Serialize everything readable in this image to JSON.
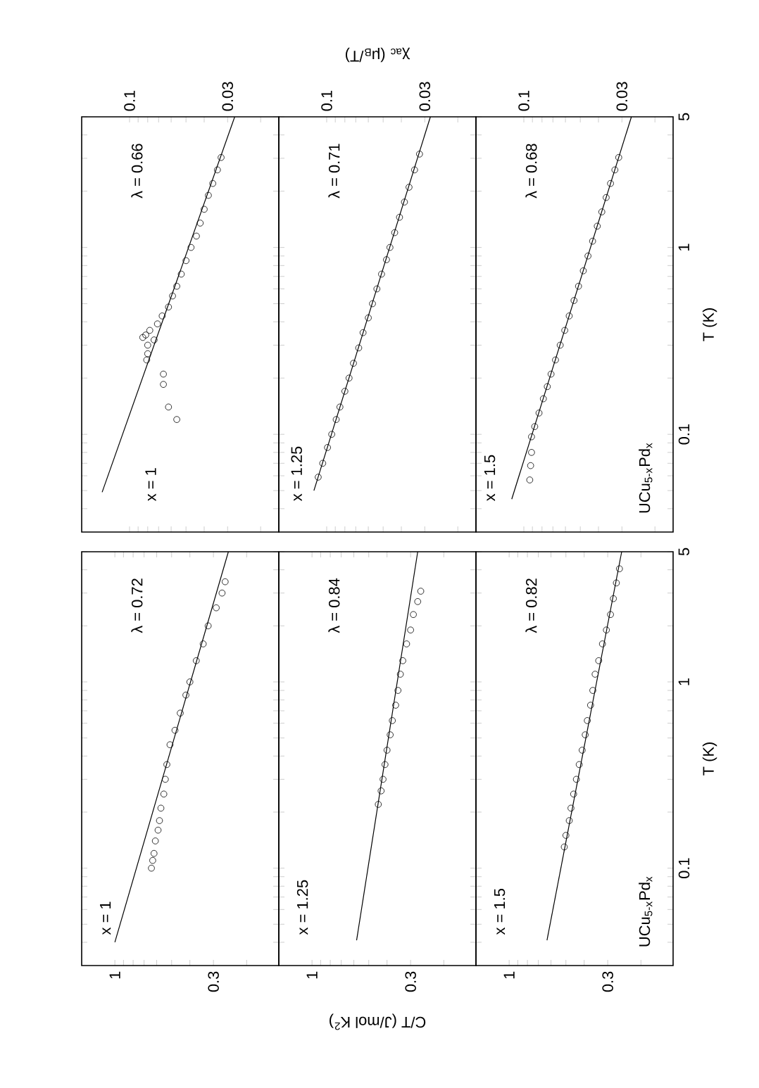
{
  "chart_data": [
    {
      "type": "scatter",
      "xlim": [
        0.18,
        0.016
      ],
      "ylim": [
        0.03,
        5
      ],
      "log": "xy",
      "tick_labels": "x",
      "xticks": [
        {
          "value": 0.02,
          "label": null
        },
        0.03,
        {
          "value": 0.04,
          "label": null
        },
        {
          "value": 0.05,
          "label": null
        },
        {
          "value": 0.06,
          "label": null
        },
        {
          "value": 0.07,
          "label": null
        },
        {
          "value": 0.08,
          "label": null
        },
        {
          "value": 0.09,
          "label": null
        },
        0.1
      ],
      "yticks": [
        {
          "value": 0.04,
          "label": null
        },
        {
          "value": 0.05,
          "label": null
        },
        {
          "value": 0.06,
          "label": null
        },
        {
          "value": 0.07,
          "label": null
        },
        {
          "value": 0.08,
          "label": null
        },
        {
          "value": 0.09,
          "label": null
        },
        0.1,
        {
          "value": 0.2,
          "label": null
        },
        {
          "value": 0.3,
          "label": null
        },
        {
          "value": 0.4,
          "label": null
        },
        {
          "value": 0.5,
          "label": null
        },
        {
          "value": 0.6,
          "label": null
        },
        {
          "value": 0.7,
          "label": null
        },
        {
          "value": 0.8,
          "label": null
        },
        {
          "value": 0.9,
          "label": null
        },
        1,
        {
          "value": 2,
          "label": null
        },
        {
          "value": 3,
          "label": null
        },
        {
          "value": 4,
          "label": null
        },
        5
      ],
      "annotations": [
        "x = 1",
        "λ = 0.66"
      ],
      "series": [
        {
          "color": "#000000",
          "marker": "circle",
          "x": [
            0.0325,
            0.034,
            0.036,
            0.038,
            0.04,
            0.042,
            0.044,
            0.047,
            0.05,
            0.053,
            0.056,
            0.059,
            0.062,
            0.067,
            0.071,
            0.078,
            0.082,
            0.085,
            0.074,
            0.08,
            0.08,
            0.081,
            0.066,
            0.066,
            0.062,
            0.056
          ],
          "values": [
            3.03,
            2.6,
            2.2,
            1.9,
            1.6,
            1.35,
            1.15,
            1.0,
            0.85,
            0.72,
            0.62,
            0.55,
            0.48,
            0.43,
            0.39,
            0.36,
            0.34,
            0.33,
            0.32,
            0.3,
            0.27,
            0.25,
            0.21,
            0.185,
            0.14,
            0.12
          ]
        },
        {
          "type": "line",
          "color": "#000000",
          "marker": "none",
          "x": [
            0.14,
            0.0275
          ],
          "values": [
            0.049,
            5
          ]
        }
      ]
    },
    {
      "type": "scatter",
      "xlim": [
        0.18,
        0.016
      ],
      "ylim": [
        0.03,
        5
      ],
      "log": "xy",
      "tick_labels": "x",
      "xlabel": "χ$_{ac}$ (μ$_{B}$/T)",
      "xticks": [
        {
          "value": 0.02,
          "label": null
        },
        0.03,
        {
          "value": 0.04,
          "label": null
        },
        {
          "value": 0.05,
          "label": null
        },
        {
          "value": 0.06,
          "label": null
        },
        {
          "value": 0.07,
          "label": null
        },
        {
          "value": 0.08,
          "label": null
        },
        {
          "value": 0.09,
          "label": null
        },
        0.1
      ],
      "yticks": [
        {
          "value": 0.04,
          "label": null
        },
        {
          "value": 0.05,
          "label": null
        },
        {
          "value": 0.06,
          "label": null
        },
        {
          "value": 0.07,
          "label": null
        },
        {
          "value": 0.08,
          "label": null
        },
        {
          "value": 0.09,
          "label": null
        },
        0.1,
        {
          "value": 0.2,
          "label": null
        },
        {
          "value": 0.3,
          "label": null
        },
        {
          "value": 0.4,
          "label": null
        },
        {
          "value": 0.5,
          "label": null
        },
        {
          "value": 0.6,
          "label": null
        },
        {
          "value": 0.7,
          "label": null
        },
        {
          "value": 0.8,
          "label": null
        },
        {
          "value": 0.9,
          "label": null
        },
        1,
        {
          "value": 2,
          "label": null
        },
        {
          "value": 3,
          "label": null
        },
        {
          "value": 4,
          "label": null
        },
        5
      ],
      "annotations": [
        "x = 1.25",
        "λ = 0.71"
      ],
      "series": [
        {
          "color": "#000000",
          "marker": "circle",
          "x": [
            0.111,
            0.105,
            0.099,
            0.094,
            0.089,
            0.085,
            0.08,
            0.076,
            0.072,
            0.0675,
            0.064,
            0.06,
            0.057,
            0.054,
            0.051,
            0.048,
            0.046,
            0.0434,
            0.0409,
            0.0385,
            0.0364,
            0.034,
            0.032
          ],
          "values": [
            0.059,
            0.07,
            0.085,
            0.1,
            0.12,
            0.14,
            0.17,
            0.2,
            0.24,
            0.29,
            0.35,
            0.42,
            0.5,
            0.6,
            0.72,
            0.86,
            1.0,
            1.2,
            1.45,
            1.75,
            2.1,
            2.6,
            3.16
          ]
        },
        {
          "type": "line",
          "color": "#000000",
          "marker": "none",
          "x": [
            0.117,
            0.028
          ],
          "values": [
            0.05,
            5
          ]
        }
      ]
    },
    {
      "type": "scatter",
      "xlim": [
        0.18,
        0.016
      ],
      "ylim": [
        0.03,
        5
      ],
      "log": "xy",
      "ylabel": "T (K)",
      "xticks": [
        {
          "value": 0.02,
          "label": null
        },
        0.03,
        {
          "value": 0.04,
          "label": null
        },
        {
          "value": 0.05,
          "label": null
        },
        {
          "value": 0.06,
          "label": null
        },
        {
          "value": 0.07,
          "label": null
        },
        {
          "value": 0.08,
          "label": null
        },
        {
          "value": 0.09,
          "label": null
        },
        0.1
      ],
      "yticks": [
        {
          "value": 0.04,
          "label": null
        },
        {
          "value": 0.05,
          "label": null
        },
        {
          "value": 0.06,
          "label": null
        },
        {
          "value": 0.07,
          "label": null
        },
        {
          "value": 0.08,
          "label": null
        },
        {
          "value": 0.09,
          "label": null
        },
        0.1,
        {
          "value": 0.2,
          "label": null
        },
        {
          "value": 0.3,
          "label": null
        },
        {
          "value": 0.4,
          "label": null
        },
        {
          "value": 0.5,
          "label": null
        },
        {
          "value": 0.6,
          "label": null
        },
        {
          "value": 0.7,
          "label": null
        },
        {
          "value": 0.8,
          "label": null
        },
        {
          "value": 0.9,
          "label": null
        },
        1,
        {
          "value": 2,
          "label": null
        },
        {
          "value": 3,
          "label": null
        },
        {
          "value": 4,
          "label": null
        },
        5
      ],
      "annotations": [
        "x = 1.5",
        "λ = 0.68",
        "UCu$_{5-x}$Pd$_{x}$"
      ],
      "series": [
        {
          "color": "#000000",
          "marker": "circle",
          "x": [
            0.093,
            0.092,
            0.091,
            0.091,
            0.0875,
            0.083,
            0.0787,
            0.075,
            0.0716,
            0.0678,
            0.064,
            0.0605,
            0.0573,
            0.054,
            0.0511,
            0.0482,
            0.0455,
            0.043,
            0.0406,
            0.0384,
            0.0364,
            0.0345,
            0.0327,
            0.0312
          ],
          "values": [
            0.057,
            0.068,
            0.08,
            0.097,
            0.11,
            0.13,
            0.155,
            0.18,
            0.21,
            0.25,
            0.3,
            0.36,
            0.43,
            0.52,
            0.62,
            0.75,
            0.9,
            1.08,
            1.3,
            1.55,
            1.85,
            2.2,
            2.6,
            3.03
          ]
        },
        {
          "type": "line",
          "color": "#000000",
          "marker": "none",
          "x": [
            0.116,
            0.0267
          ],
          "values": [
            0.045,
            5
          ]
        }
      ]
    },
    {
      "type": "scatter",
      "xlim": [
        1.5,
        0.135
      ],
      "ylim": [
        0.03,
        5
      ],
      "log": "xy",
      "tick_labels": "x",
      "xticks": [
        {
          "value": 0.2,
          "label": null
        },
        0.3,
        {
          "value": 0.4,
          "label": null
        },
        {
          "value": 0.5,
          "label": null
        },
        {
          "value": 0.6,
          "label": null
        },
        {
          "value": 0.7,
          "label": null
        },
        {
          "value": 0.8,
          "label": null
        },
        {
          "value": 0.9,
          "label": null
        },
        1
      ],
      "yticks": [
        {
          "value": 0.04,
          "label": null
        },
        {
          "value": 0.05,
          "label": null
        },
        {
          "value": 0.06,
          "label": null
        },
        {
          "value": 0.07,
          "label": null
        },
        {
          "value": 0.08,
          "label": null
        },
        {
          "value": 0.09,
          "label": null
        },
        0.1,
        {
          "value": 0.2,
          "label": null
        },
        {
          "value": 0.3,
          "label": null
        },
        {
          "value": 0.4,
          "label": null
        },
        {
          "value": 0.5,
          "label": null
        },
        {
          "value": 0.6,
          "label": null
        },
        {
          "value": 0.7,
          "label": null
        },
        {
          "value": 0.8,
          "label": null
        },
        {
          "value": 0.9,
          "label": null
        },
        1,
        {
          "value": 2,
          "label": null
        },
        {
          "value": 3,
          "label": null
        },
        {
          "value": 4,
          "label": null
        },
        5
      ],
      "annotations": [
        "x = 1",
        "λ = 0.72"
      ],
      "series": [
        {
          "color": "#000000",
          "marker": "circle",
          "x": [
            0.64,
            0.63,
            0.62,
            0.61,
            0.59,
            0.58,
            0.57,
            0.55,
            0.54,
            0.53,
            0.51,
            0.48,
            0.45,
            0.42,
            0.4,
            0.37,
            0.34,
            0.32,
            0.29,
            0.27,
            0.26
          ],
          "values": [
            0.1,
            0.11,
            0.12,
            0.14,
            0.16,
            0.18,
            0.21,
            0.25,
            0.3,
            0.36,
            0.46,
            0.55,
            0.68,
            0.85,
            1.0,
            1.3,
            1.6,
            2.0,
            2.5,
            3.0,
            3.45
          ]
        },
        {
          "type": "line",
          "color": "#000000",
          "marker": "none",
          "x": [
            1.0,
            0.25
          ],
          "values": [
            0.04,
            5
          ]
        }
      ]
    },
    {
      "type": "scatter",
      "xlim": [
        1.5,
        0.135
      ],
      "ylim": [
        0.03,
        5
      ],
      "log": "xy",
      "tick_labels": "x",
      "xlabel": "C/T (J/mol K$^{2}$)",
      "xticks": [
        {
          "value": 0.2,
          "label": null
        },
        0.3,
        {
          "value": 0.4,
          "label": null
        },
        {
          "value": 0.5,
          "label": null
        },
        {
          "value": 0.6,
          "label": null
        },
        {
          "value": 0.7,
          "label": null
        },
        {
          "value": 0.8,
          "label": null
        },
        {
          "value": 0.9,
          "label": null
        },
        1
      ],
      "yticks": [
        {
          "value": 0.04,
          "label": null
        },
        {
          "value": 0.05,
          "label": null
        },
        {
          "value": 0.06,
          "label": null
        },
        {
          "value": 0.07,
          "label": null
        },
        {
          "value": 0.08,
          "label": null
        },
        {
          "value": 0.09,
          "label": null
        },
        0.1,
        {
          "value": 0.2,
          "label": null
        },
        {
          "value": 0.3,
          "label": null
        },
        {
          "value": 0.4,
          "label": null
        },
        {
          "value": 0.5,
          "label": null
        },
        {
          "value": 0.6,
          "label": null
        },
        {
          "value": 0.7,
          "label": null
        },
        {
          "value": 0.8,
          "label": null
        },
        {
          "value": 0.9,
          "label": null
        },
        1,
        {
          "value": 2,
          "label": null
        },
        {
          "value": 3,
          "label": null
        },
        {
          "value": 4,
          "label": null
        },
        5
      ],
      "annotations": [
        "x = 1.25",
        "λ = 0.84"
      ],
      "series": [
        {
          "color": "#000000",
          "marker": "circle",
          "x": [
            0.445,
            0.43,
            0.42,
            0.41,
            0.4,
            0.385,
            0.375,
            0.36,
            0.35,
            0.34,
            0.33,
            0.315,
            0.3,
            0.29,
            0.275,
            0.265
          ],
          "values": [
            0.22,
            0.26,
            0.3,
            0.36,
            0.43,
            0.52,
            0.62,
            0.75,
            0.9,
            1.1,
            1.3,
            1.6,
            1.9,
            2.3,
            2.7,
            3.07
          ]
        },
        {
          "type": "line",
          "color": "#000000",
          "marker": "none",
          "x": [
            0.58,
            0.275
          ],
          "values": [
            0.041,
            5
          ]
        }
      ]
    },
    {
      "type": "scatter",
      "xlim": [
        1.5,
        0.135
      ],
      "ylim": [
        0.03,
        5
      ],
      "log": "xy",
      "ylabel": "T (K)",
      "xticks": [
        {
          "value": 0.2,
          "label": null
        },
        0.3,
        {
          "value": 0.4,
          "label": null
        },
        {
          "value": 0.5,
          "label": null
        },
        {
          "value": 0.6,
          "label": null
        },
        {
          "value": 0.7,
          "label": null
        },
        {
          "value": 0.8,
          "label": null
        },
        {
          "value": 0.9,
          "label": null
        },
        1
      ],
      "yticks": [
        {
          "value": 0.04,
          "label": null
        },
        {
          "value": 0.05,
          "label": null
        },
        {
          "value": 0.06,
          "label": null
        },
        {
          "value": 0.07,
          "label": null
        },
        {
          "value": 0.08,
          "label": null
        },
        {
          "value": 0.09,
          "label": null
        },
        0.1,
        {
          "value": 0.2,
          "label": null
        },
        {
          "value": 0.3,
          "label": null
        },
        {
          "value": 0.4,
          "label": null
        },
        {
          "value": 0.5,
          "label": null
        },
        {
          "value": 0.6,
          "label": null
        },
        {
          "value": 0.7,
          "label": null
        },
        {
          "value": 0.8,
          "label": null
        },
        {
          "value": 0.9,
          "label": null
        },
        1,
        {
          "value": 2,
          "label": null
        },
        {
          "value": 3,
          "label": null
        },
        {
          "value": 4,
          "label": null
        },
        5
      ],
      "annotations": [
        "x = 1.5",
        "λ = 0.82",
        "UCu$_{5-x}$Pd$_{x}$"
      ],
      "series": [
        {
          "color": "#000000",
          "marker": "circle",
          "x": [
            0.51,
            0.5,
            0.48,
            0.47,
            0.455,
            0.44,
            0.425,
            0.41,
            0.395,
            0.385,
            0.37,
            0.36,
            0.35,
            0.335,
            0.32,
            0.305,
            0.29,
            0.28,
            0.27,
            0.26
          ],
          "values": [
            0.13,
            0.15,
            0.18,
            0.21,
            0.25,
            0.3,
            0.36,
            0.43,
            0.52,
            0.62,
            0.75,
            0.9,
            1.1,
            1.3,
            1.6,
            1.9,
            2.3,
            2.8,
            3.4,
            4.05
          ]
        },
        {
          "type": "line",
          "color": "#000000",
          "marker": "none",
          "x": [
            0.63,
            0.253
          ],
          "values": [
            0.041,
            5
          ]
        }
      ]
    }
  ]
}
